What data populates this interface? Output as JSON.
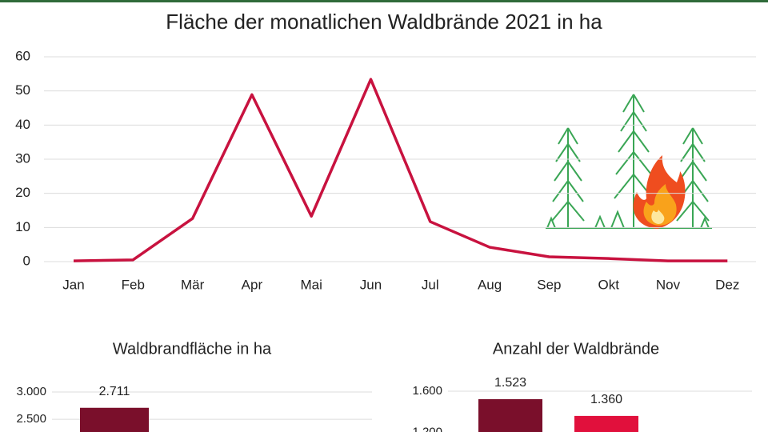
{
  "chart_data": [
    {
      "type": "line",
      "title": "Fläche der monatlichen Waldbrände 2021 in ha",
      "categories": [
        "Jan",
        "Feb",
        "Mär",
        "Apr",
        "Mai",
        "Jun",
        "Jul",
        "Aug",
        "Sep",
        "Okt",
        "Nov",
        "Dez"
      ],
      "series": [
        {
          "color": "#c8123f",
          "values": [
            0.2,
            0.5,
            12.6,
            48.9,
            13.3,
            53.4,
            11.7,
            4.2,
            1.4,
            0.9,
            0.2,
            0.2
          ]
        }
      ],
      "ylim": [
        0,
        60
      ],
      "yticks": [
        0,
        10,
        20,
        30,
        40,
        50,
        60
      ],
      "grid": true
    },
    {
      "type": "bar",
      "title": "Waldbrandfläche in ha",
      "series": [
        {
          "color": "#7a0f2b",
          "values": [
            2711
          ],
          "value_labels": [
            "2.711"
          ]
        }
      ],
      "ylim": [
        0,
        3000
      ],
      "yticks": [
        {
          "value": 2500,
          "label": "2.500"
        },
        {
          "value": 3000,
          "label": "3.000"
        }
      ],
      "grid": true
    },
    {
      "type": "bar",
      "title": "Anzahl der Waldbrände",
      "series": [
        {
          "color": "#7a0f2b",
          "values": [
            1523
          ],
          "value_labels": [
            "1.523"
          ]
        },
        {
          "color": "#e1103c",
          "values": [
            1360
          ],
          "value_labels": [
            "1.360"
          ]
        }
      ],
      "ylim": [
        0,
        1600
      ],
      "yticks": [
        {
          "value": 1200,
          "label": "1.200"
        },
        {
          "value": 1600,
          "label": "1.600"
        }
      ],
      "grid": true
    }
  ]
}
